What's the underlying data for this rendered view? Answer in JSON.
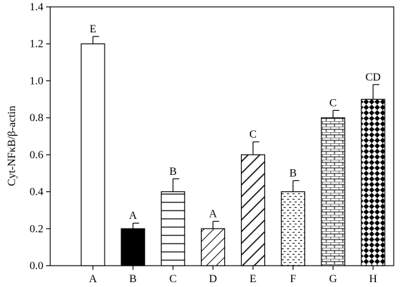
{
  "chart_data": {
    "type": "bar",
    "title": "",
    "xlabel": "",
    "ylabel": "Cyt-NFκB/β-actin",
    "ylim": [
      0,
      1.4
    ],
    "yticks": [
      0.0,
      0.2,
      0.4,
      0.6,
      0.8,
      1.0,
      1.2,
      1.4
    ],
    "ytick_labels": [
      "0.0",
      "0.2",
      "0.4",
      "0.6",
      "0.8",
      "1.0",
      "1.2",
      "1.4"
    ],
    "grid": false,
    "categories": [
      "A",
      "B",
      "C",
      "D",
      "E",
      "F",
      "G",
      "H"
    ],
    "values": [
      1.2,
      0.2,
      0.4,
      0.2,
      0.6,
      0.4,
      0.8,
      0.9
    ],
    "errors": [
      0.04,
      0.03,
      0.07,
      0.04,
      0.07,
      0.06,
      0.04,
      0.08
    ],
    "significance_labels": [
      "E",
      "A",
      "B",
      "A",
      "C",
      "B",
      "C",
      "CD"
    ],
    "fills": [
      "white",
      "black",
      "horizontal-lines",
      "diagonal-lines-light",
      "diagonal-lines",
      "dots",
      "brick",
      "diamond-checker"
    ]
  }
}
